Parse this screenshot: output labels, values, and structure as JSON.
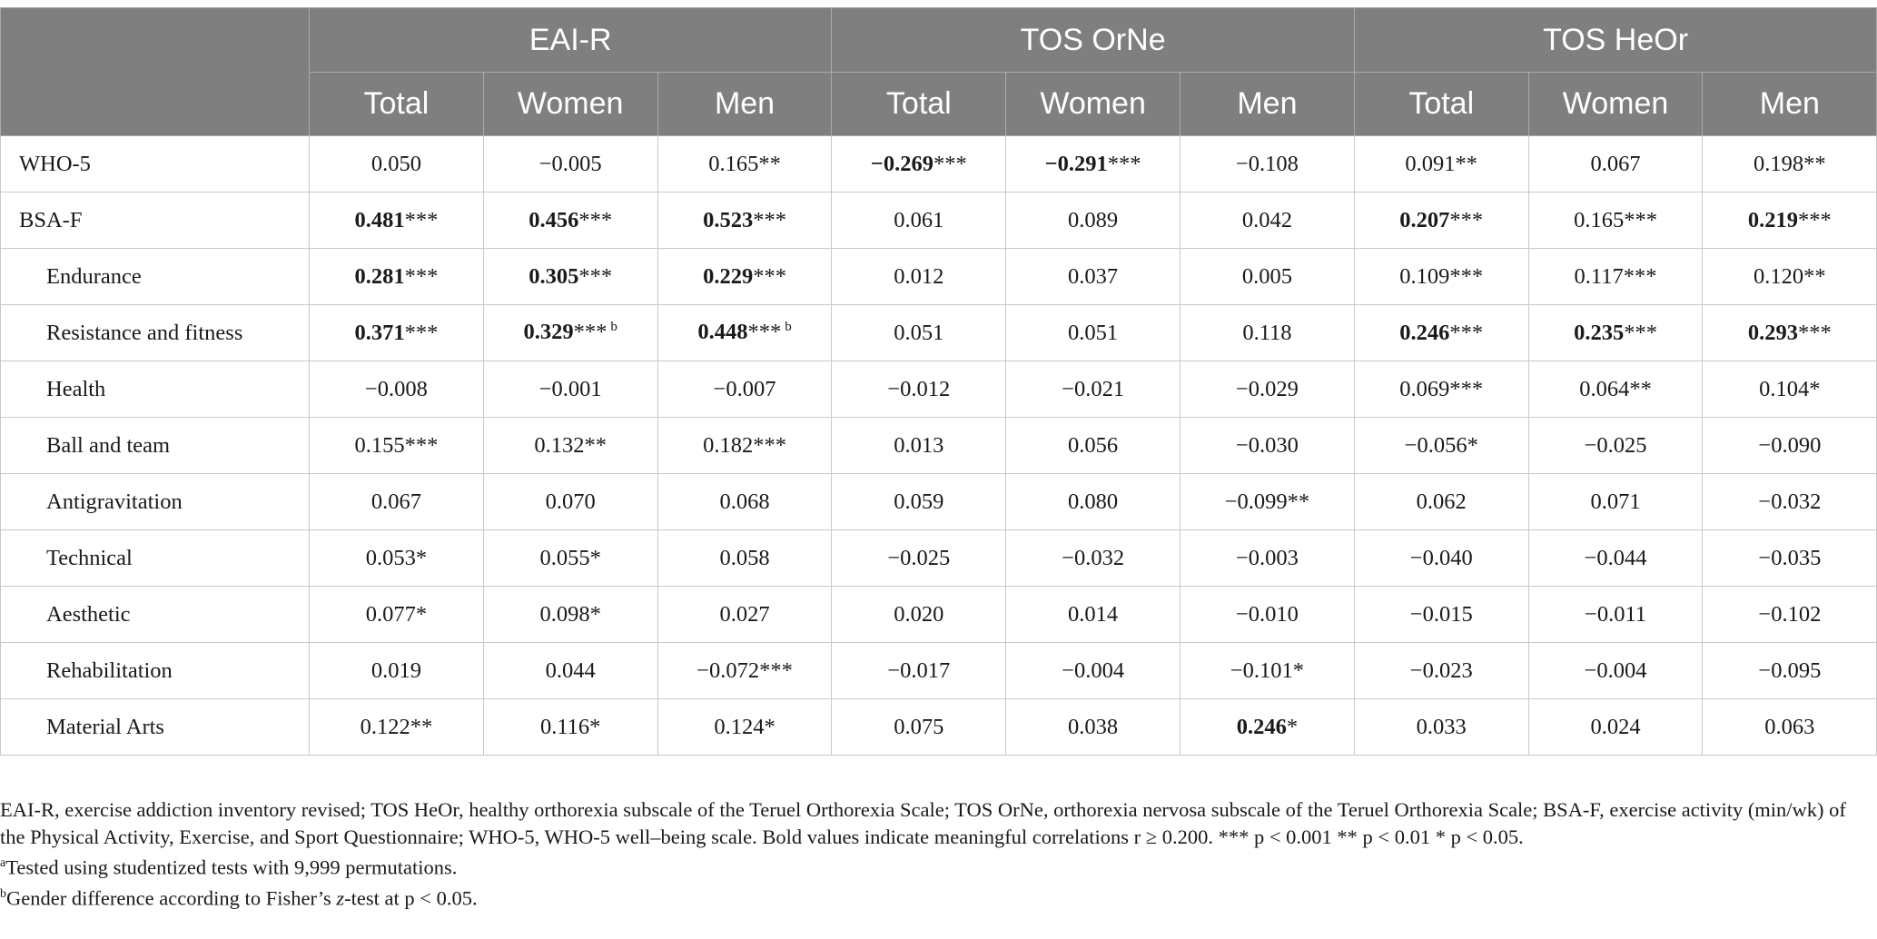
{
  "header": {
    "groups": [
      "EAI-R",
      "TOS OrNe",
      "TOS HeOr"
    ],
    "subcolumns": [
      "Total",
      "Women",
      "Men"
    ]
  },
  "rows": [
    {
      "label": "WHO-5",
      "indent": false,
      "cells": [
        {
          "v": "0.050",
          "s": "",
          "b": false
        },
        {
          "v": "−0.005",
          "s": "",
          "b": false
        },
        {
          "v": "0.165",
          "s": "**",
          "b": false
        },
        {
          "v": "−0.269",
          "s": "***",
          "b": true
        },
        {
          "v": "−0.291",
          "s": "***",
          "b": true
        },
        {
          "v": "−0.108",
          "s": "",
          "b": false
        },
        {
          "v": "0.091",
          "s": "**",
          "b": false
        },
        {
          "v": "0.067",
          "s": "",
          "b": false
        },
        {
          "v": "0.198",
          "s": "**",
          "b": false
        }
      ]
    },
    {
      "label": "BSA-F",
      "indent": false,
      "cells": [
        {
          "v": "0.481",
          "s": "***",
          "b": true
        },
        {
          "v": "0.456",
          "s": "***",
          "b": true
        },
        {
          "v": "0.523",
          "s": "***",
          "b": true
        },
        {
          "v": "0.061",
          "s": "",
          "b": false
        },
        {
          "v": "0.089",
          "s": "",
          "b": false
        },
        {
          "v": "0.042",
          "s": "",
          "b": false
        },
        {
          "v": "0.207",
          "s": "***",
          "b": true
        },
        {
          "v": "0.165",
          "s": "***",
          "b": false
        },
        {
          "v": "0.219",
          "s": "***",
          "b": true
        }
      ]
    },
    {
      "label": "Endurance",
      "indent": true,
      "cells": [
        {
          "v": "0.281",
          "s": "***",
          "b": true
        },
        {
          "v": "0.305",
          "s": "***",
          "b": true
        },
        {
          "v": "0.229",
          "s": "***",
          "b": true
        },
        {
          "v": "0.012",
          "s": "",
          "b": false
        },
        {
          "v": "0.037",
          "s": "",
          "b": false
        },
        {
          "v": "0.005",
          "s": "",
          "b": false
        },
        {
          "v": "0.109",
          "s": "***",
          "b": false
        },
        {
          "v": "0.117",
          "s": "***",
          "b": false
        },
        {
          "v": "0.120",
          "s": "**",
          "b": false
        }
      ]
    },
    {
      "label": "Resistance and fitness",
      "indent": true,
      "cells": [
        {
          "v": "0.371",
          "s": "***",
          "b": true
        },
        {
          "v": "0.329",
          "s": "***",
          "b": true,
          "sup": "b"
        },
        {
          "v": "0.448",
          "s": "***",
          "b": true,
          "sup": "b"
        },
        {
          "v": "0.051",
          "s": "",
          "b": false
        },
        {
          "v": "0.051",
          "s": "",
          "b": false
        },
        {
          "v": "0.118",
          "s": "",
          "b": false
        },
        {
          "v": "0.246",
          "s": "***",
          "b": true
        },
        {
          "v": "0.235",
          "s": "***",
          "b": true
        },
        {
          "v": "0.293",
          "s": "***",
          "b": true
        }
      ]
    },
    {
      "label": "Health",
      "indent": true,
      "cells": [
        {
          "v": "−0.008",
          "s": "",
          "b": false
        },
        {
          "v": "−0.001",
          "s": "",
          "b": false
        },
        {
          "v": "−0.007",
          "s": "",
          "b": false
        },
        {
          "v": "−0.012",
          "s": "",
          "b": false
        },
        {
          "v": "−0.021",
          "s": "",
          "b": false
        },
        {
          "v": "−0.029",
          "s": "",
          "b": false
        },
        {
          "v": "0.069",
          "s": "***",
          "b": false
        },
        {
          "v": "0.064",
          "s": "**",
          "b": false
        },
        {
          "v": "0.104",
          "s": "*",
          "b": false
        }
      ]
    },
    {
      "label": "Ball and team",
      "indent": true,
      "cells": [
        {
          "v": "0.155",
          "s": "***",
          "b": false
        },
        {
          "v": "0.132",
          "s": "**",
          "b": false
        },
        {
          "v": "0.182",
          "s": "***",
          "b": false
        },
        {
          "v": "0.013",
          "s": "",
          "b": false
        },
        {
          "v": "0.056",
          "s": "",
          "b": false
        },
        {
          "v": "−0.030",
          "s": "",
          "b": false
        },
        {
          "v": "−0.056",
          "s": "*",
          "b": false
        },
        {
          "v": "−0.025",
          "s": "",
          "b": false
        },
        {
          "v": "−0.090",
          "s": "",
          "b": false
        }
      ]
    },
    {
      "label": "Antigravitation",
      "indent": true,
      "cells": [
        {
          "v": "0.067",
          "s": "",
          "b": false
        },
        {
          "v": "0.070",
          "s": "",
          "b": false
        },
        {
          "v": "0.068",
          "s": "",
          "b": false
        },
        {
          "v": "0.059",
          "s": "",
          "b": false
        },
        {
          "v": "0.080",
          "s": "",
          "b": false
        },
        {
          "v": "−0.099",
          "s": "**",
          "b": false
        },
        {
          "v": "0.062",
          "s": "",
          "b": false
        },
        {
          "v": "0.071",
          "s": "",
          "b": false
        },
        {
          "v": "−0.032",
          "s": "",
          "b": false
        }
      ]
    },
    {
      "label": "Technical",
      "indent": true,
      "cells": [
        {
          "v": "0.053",
          "s": "*",
          "b": false
        },
        {
          "v": "0.055",
          "s": "*",
          "b": false
        },
        {
          "v": "0.058",
          "s": "",
          "b": false
        },
        {
          "v": "−0.025",
          "s": "",
          "b": false
        },
        {
          "v": "−0.032",
          "s": "",
          "b": false
        },
        {
          "v": "−0.003",
          "s": "",
          "b": false
        },
        {
          "v": "−0.040",
          "s": "",
          "b": false
        },
        {
          "v": "−0.044",
          "s": "",
          "b": false
        },
        {
          "v": "−0.035",
          "s": "",
          "b": false
        }
      ]
    },
    {
      "label": "Aesthetic",
      "indent": true,
      "cells": [
        {
          "v": "0.077",
          "s": "*",
          "b": false
        },
        {
          "v": "0.098",
          "s": "*",
          "b": false
        },
        {
          "v": "0.027",
          "s": "",
          "b": false
        },
        {
          "v": "0.020",
          "s": "",
          "b": false
        },
        {
          "v": "0.014",
          "s": "",
          "b": false
        },
        {
          "v": "−0.010",
          "s": "",
          "b": false
        },
        {
          "v": "−0.015",
          "s": "",
          "b": false
        },
        {
          "v": "−0.011",
          "s": "",
          "b": false
        },
        {
          "v": "−0.102",
          "s": "",
          "b": false
        }
      ]
    },
    {
      "label": "Rehabilitation",
      "indent": true,
      "cells": [
        {
          "v": "0.019",
          "s": "",
          "b": false
        },
        {
          "v": "0.044",
          "s": "",
          "b": false
        },
        {
          "v": "−0.072",
          "s": "***",
          "b": false
        },
        {
          "v": "−0.017",
          "s": "",
          "b": false
        },
        {
          "v": "−0.004",
          "s": "",
          "b": false
        },
        {
          "v": "−0.101",
          "s": "*",
          "b": false
        },
        {
          "v": "−0.023",
          "s": "",
          "b": false
        },
        {
          "v": "−0.004",
          "s": "",
          "b": false
        },
        {
          "v": "−0.095",
          "s": "",
          "b": false
        }
      ]
    },
    {
      "label": "Material Arts",
      "indent": true,
      "cells": [
        {
          "v": "0.122",
          "s": "**",
          "b": false
        },
        {
          "v": "0.116",
          "s": "*",
          "b": false
        },
        {
          "v": "0.124",
          "s": "*",
          "b": false
        },
        {
          "v": "0.075",
          "s": "",
          "b": false
        },
        {
          "v": "0.038",
          "s": "",
          "b": false
        },
        {
          "v": "0.246",
          "s": "*",
          "b": true
        },
        {
          "v": "0.033",
          "s": "",
          "b": false
        },
        {
          "v": "0.024",
          "s": "",
          "b": false
        },
        {
          "v": "0.063",
          "s": "",
          "b": false
        }
      ]
    }
  ],
  "notes": {
    "abbrev": "EAI-R, exercise addiction inventory revised; TOS HeOr, healthy orthorexia subscale of the Teruel Orthorexia Scale; TOS OrNe, orthorexia nervosa subscale of the Teruel Orthorexia Scale; BSA-F, exercise activity (min/wk) of the Physical Activity, Exercise, and Sport Questionnaire; WHO-5, WHO-5 well–being scale. Bold values indicate meaningful correlations r ≥ 0.200. *** p < 0.001 ** p < 0.01 * p < 0.05.",
    "note_a_mark": "a",
    "note_a": "Tested using studentized tests with 9,999 permutations.",
    "note_b_mark": "b",
    "note_b_pre": "Gender difference according to Fisher’s ",
    "note_b_z": "z",
    "note_b_post": "-test at p < 0.05."
  }
}
